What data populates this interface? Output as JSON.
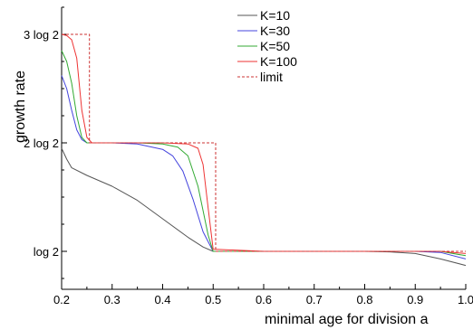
{
  "chart_data": {
    "type": "line",
    "xlabel": "minimal age for division a",
    "ylabel": "growth rate",
    "xlim": [
      0.2,
      1.0
    ],
    "ylim": [
      0.65,
      3.25
    ],
    "x_ticks": [
      {
        "value": 0.2,
        "label": "0.2"
      },
      {
        "value": 0.3,
        "label": "0.3"
      },
      {
        "value": 0.4,
        "label": "0.4"
      },
      {
        "value": 0.5,
        "label": "0.5"
      },
      {
        "value": 0.6,
        "label": "0.6"
      },
      {
        "value": 0.7,
        "label": "0.7"
      },
      {
        "value": 0.8,
        "label": "0.8"
      },
      {
        "value": 0.9,
        "label": "0.9"
      },
      {
        "value": 1.0,
        "label": "1.0"
      }
    ],
    "y_ticks": [
      {
        "value": 1,
        "label": "log 2"
      },
      {
        "value": 2,
        "label": "2 log 2"
      },
      {
        "value": 3,
        "label": "3 log 2"
      }
    ],
    "y_unit": "log 2",
    "legend_position": "top-right",
    "series": [
      {
        "name": "K=10",
        "color": "#555555",
        "dash": "solid",
        "x": [
          0.2,
          0.21,
          0.22,
          0.25,
          0.3,
          0.35,
          0.4,
          0.45,
          0.48,
          0.5,
          0.6,
          0.7,
          0.8,
          0.85,
          0.9,
          0.95,
          1.0
        ],
        "y": [
          1.95,
          1.85,
          1.77,
          1.7,
          1.6,
          1.47,
          1.3,
          1.13,
          1.04,
          1.0,
          1.0,
          1.0,
          1.0,
          0.995,
          0.98,
          0.93,
          0.87
        ]
      },
      {
        "name": "K=30",
        "color": "#4444dd",
        "dash": "solid",
        "x": [
          0.2,
          0.21,
          0.22,
          0.23,
          0.24,
          0.25,
          0.3,
          0.35,
          0.4,
          0.42,
          0.44,
          0.46,
          0.48,
          0.5,
          0.6,
          0.7,
          0.8,
          0.9,
          0.95,
          1.0
        ],
        "y": [
          2.62,
          2.5,
          2.3,
          2.12,
          2.03,
          2.0,
          2.0,
          1.99,
          1.94,
          1.88,
          1.74,
          1.48,
          1.18,
          1.0,
          1.0,
          1.0,
          1.0,
          1.0,
          0.99,
          0.93
        ]
      },
      {
        "name": "K=50",
        "color": "#33aa33",
        "dash": "solid",
        "x": [
          0.2,
          0.21,
          0.22,
          0.23,
          0.24,
          0.25,
          0.3,
          0.35,
          0.4,
          0.43,
          0.45,
          0.47,
          0.49,
          0.5,
          0.6,
          0.7,
          0.8,
          0.9,
          0.95,
          1.0
        ],
        "y": [
          2.85,
          2.75,
          2.55,
          2.25,
          2.05,
          2.0,
          2.0,
          2.0,
          1.99,
          1.96,
          1.88,
          1.6,
          1.15,
          1.0,
          1.0,
          1.0,
          1.0,
          1.0,
          1.0,
          0.96
        ]
      },
      {
        "name": "K=100",
        "color": "#ee3333",
        "dash": "solid",
        "x": [
          0.2,
          0.21,
          0.22,
          0.23,
          0.24,
          0.25,
          0.26,
          0.3,
          0.35,
          0.4,
          0.45,
          0.47,
          0.48,
          0.49,
          0.5,
          0.6,
          0.7,
          0.8,
          0.9,
          0.95,
          1.0
        ],
        "y": [
          3.0,
          2.99,
          2.95,
          2.78,
          2.3,
          2.05,
          2.0,
          2.0,
          2.0,
          2.0,
          1.99,
          1.95,
          1.8,
          1.4,
          1.02,
          1.0,
          1.0,
          1.0,
          1.0,
          1.0,
          0.98
        ]
      },
      {
        "name": "limit",
        "color": "#cc3333",
        "dash": "dashed",
        "x": [
          0.2,
          0.255,
          0.255,
          0.505,
          0.505,
          1.0
        ],
        "y": [
          3.0,
          3.0,
          2.0,
          2.0,
          1.0,
          1.0
        ]
      }
    ]
  }
}
